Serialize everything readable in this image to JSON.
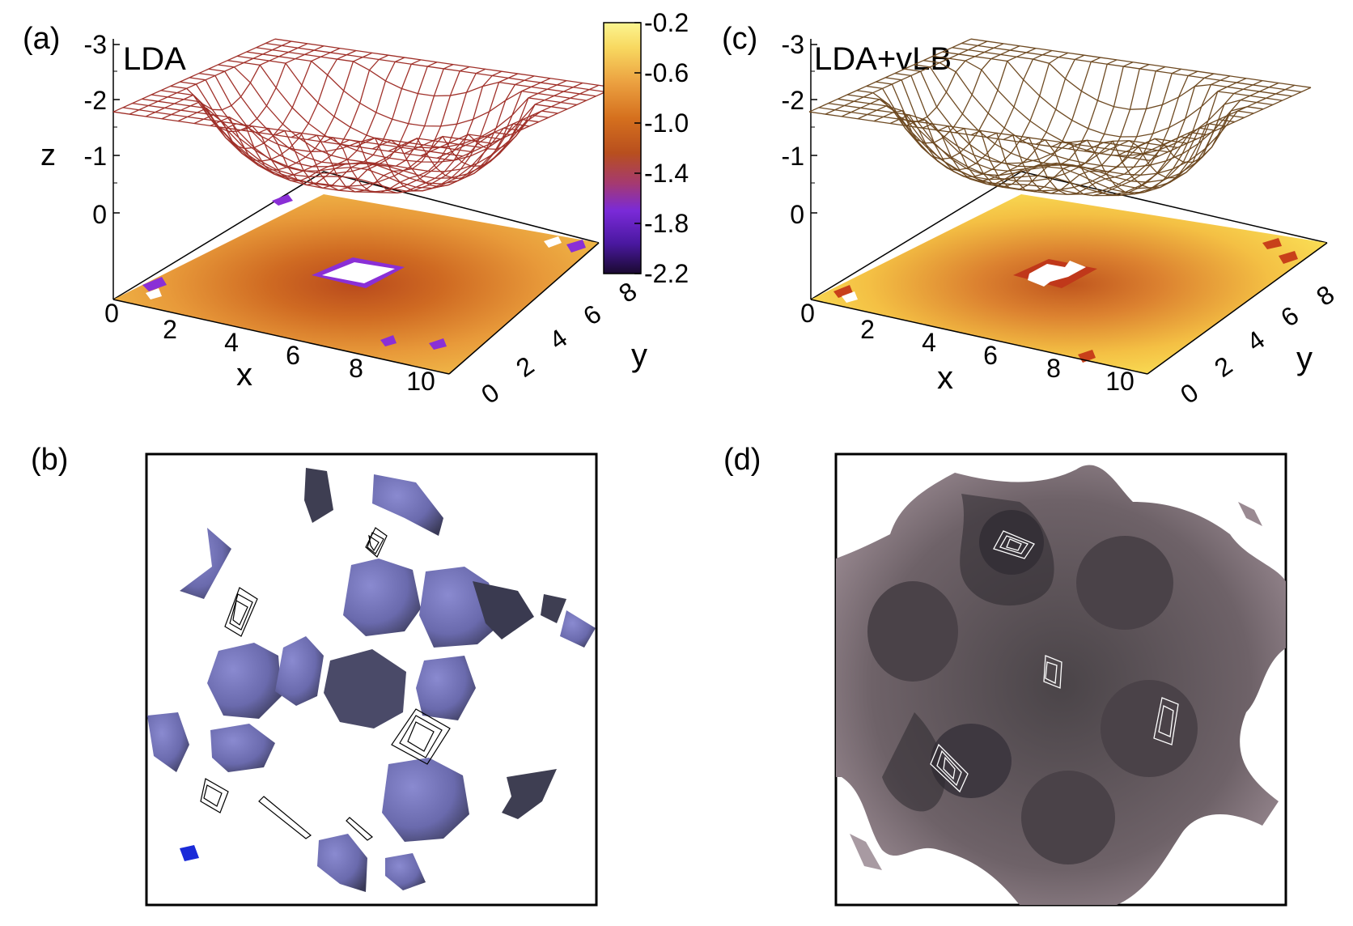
{
  "panels": {
    "a": {
      "label": "(a)",
      "method": "LDA"
    },
    "b": {
      "label": "(b)"
    },
    "c": {
      "label": "(c)",
      "method": "LDA+vLB"
    },
    "d": {
      "label": "(d)"
    }
  },
  "colors": {
    "lda_mesh": "#a0312a",
    "vlb_mesh": "#6e4a22",
    "lda_isosurface": "#6f6fb0",
    "vlb_isosurface": "#7a6a70",
    "contour_lda": "#000000",
    "contour_vlb": "#ffffff"
  },
  "chart_data": [
    {
      "type": "heatmap",
      "panel": "(a)",
      "title": "LDA",
      "xlabel": "x",
      "ylabel": "y",
      "zlabel": "z",
      "x_ticks": [
        "0",
        "2",
        "4",
        "6",
        "8",
        "10"
      ],
      "y_ticks": [
        "0",
        "2",
        "4",
        "6",
        "8"
      ],
      "z_ticks": [
        "-3",
        "-2",
        "-1",
        "0"
      ],
      "z_range": [
        0,
        -3
      ],
      "colorbar": {
        "ticks": [
          "-0.2",
          "-0.6",
          "-1.0",
          "-1.4",
          "-1.8",
          "-2.2"
        ],
        "range": [
          -2.2,
          -0.2
        ],
        "colormap": [
          "#1a0a30",
          "#4a18a0",
          "#7a2ad8",
          "#a53a70",
          "#b84f1e",
          "#d5701e",
          "#eba040",
          "#f8d860",
          "#fbf590"
        ]
      },
      "surface": "wireframe",
      "projection": "filled-contour"
    },
    {
      "type": "heatmap",
      "panel": "(c)",
      "title": "LDA+vLB",
      "xlabel": "x",
      "ylabel": "y",
      "zlabel": "",
      "x_ticks": [
        "0",
        "2",
        "4",
        "6",
        "8",
        "10"
      ],
      "y_ticks": [
        "0",
        "2",
        "4",
        "6",
        "8"
      ],
      "z_ticks": [
        "-3",
        "-2",
        "-1",
        "0"
      ],
      "z_range": [
        0,
        -3
      ],
      "surface": "wireframe",
      "projection": "filled-contour"
    }
  ]
}
